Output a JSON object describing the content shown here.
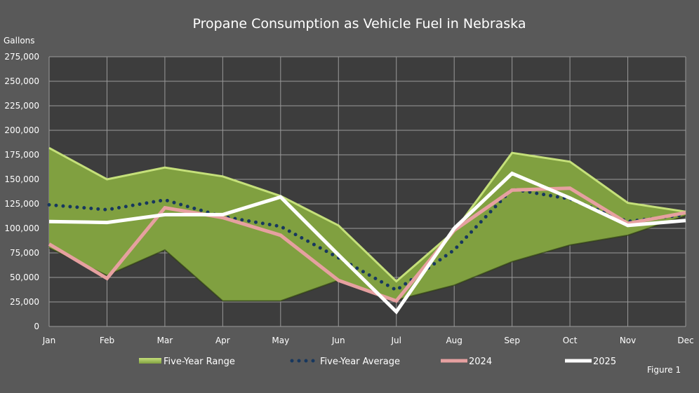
{
  "chart_data": {
    "type": "line",
    "title": "Propane Consumption as Vehicle Fuel in Nebraska",
    "ylabel": "Gallons",
    "xlabel": "",
    "footnote": "Figure 1",
    "categories": [
      "Jan",
      "Feb",
      "Mar",
      "Apr",
      "May",
      "Jun",
      "Jul",
      "Aug",
      "Sep",
      "Oct",
      "Nov",
      "Dec"
    ],
    "ylim": [
      0,
      275000
    ],
    "yticks": [
      0,
      25000,
      50000,
      75000,
      100000,
      125000,
      150000,
      175000,
      200000,
      225000,
      250000,
      275000
    ],
    "ytick_labels": [
      "0",
      "25,000",
      "50,000",
      "75,000",
      "100,000",
      "125,000",
      "150,000",
      "175,000",
      "200,000",
      "225,000",
      "250,000",
      "275,000"
    ],
    "grid": true,
    "legend_placement": "bottom",
    "range": {
      "name": "Five-Year Range",
      "color": "#80a040",
      "upper": [
        182000,
        150000,
        162000,
        153000,
        133000,
        103000,
        46000,
        97000,
        177000,
        168000,
        126000,
        117000
      ],
      "lower": [
        80000,
        52000,
        78000,
        26000,
        26000,
        47000,
        27000,
        42000,
        66000,
        83000,
        93000,
        113000
      ]
    },
    "series": [
      {
        "name": "Five-Year Average",
        "color": "#17375e",
        "style": "dotted",
        "values": [
          124000,
          119000,
          129000,
          112000,
          102000,
          70000,
          37000,
          78000,
          140000,
          130000,
          107000,
          114000
        ]
      },
      {
        "name": "2024",
        "color": "#e6a0a0",
        "style": "solid",
        "values": [
          84000,
          49000,
          121000,
          111000,
          93000,
          47000,
          26000,
          98000,
          139000,
          141000,
          105000,
          116000
        ]
      },
      {
        "name": "2025",
        "color": "#ffffff",
        "style": "solid",
        "values": [
          107000,
          106000,
          114000,
          114000,
          132000,
          73000,
          15000,
          100000,
          156000,
          131000,
          103000,
          108000
        ]
      }
    ]
  }
}
